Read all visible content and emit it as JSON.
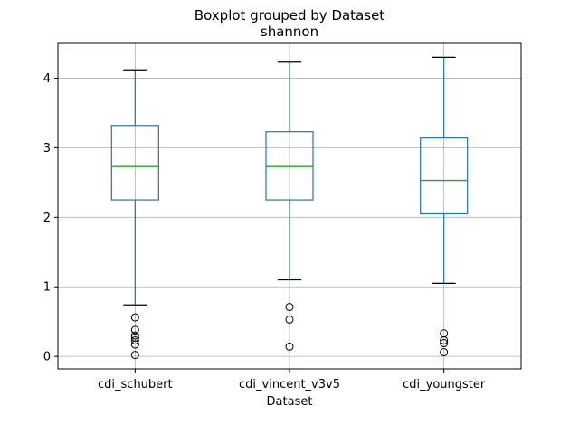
{
  "chart_data": {
    "type": "box",
    "title": "Boxplot grouped by Dataset",
    "subtitle": "shannon",
    "xlabel": "Dataset",
    "ylabel": "",
    "ylim": [
      -0.18,
      4.5
    ],
    "yticks": [
      "0",
      "1",
      "2",
      "3",
      "4"
    ],
    "grid": true,
    "categories": [
      "cdi_schubert",
      "cdi_vincent_v3v5",
      "cdi_youngster"
    ],
    "boxes": [
      {
        "whisker_low": 0.74,
        "q1": 2.25,
        "median": 2.73,
        "q3": 3.32,
        "whisker_high": 4.12,
        "outliers": [
          0.56,
          0.38,
          0.3,
          0.27,
          0.23,
          0.17,
          0.02
        ]
      },
      {
        "whisker_low": 1.1,
        "q1": 2.25,
        "median": 2.73,
        "q3": 3.23,
        "whisker_high": 4.23,
        "outliers": [
          0.71,
          0.53,
          0.14
        ]
      },
      {
        "whisker_low": 1.05,
        "q1": 2.05,
        "median": 2.53,
        "q3": 3.14,
        "whisker_high": 4.3,
        "outliers": [
          0.33,
          0.23,
          0.19,
          0.06
        ]
      }
    ],
    "colors": {
      "box": "#1f77b4",
      "median": "#2ca02c",
      "grid": "#b0b0b0",
      "cap": "#000000"
    }
  }
}
